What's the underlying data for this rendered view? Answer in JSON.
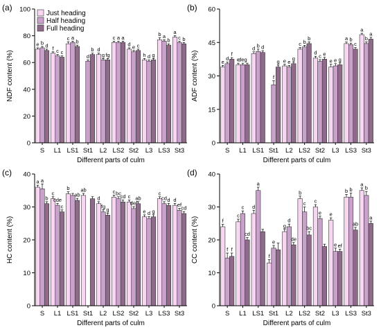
{
  "legend": [
    {
      "label": "Just heading",
      "color": "#f6d6f1"
    },
    {
      "label": "Half heading",
      "color": "#c9a2cc"
    },
    {
      "label": "Full heading",
      "color": "#8f6a8a"
    }
  ],
  "chart_data": [
    {
      "type": "bar",
      "panel_label": "(a)",
      "xlabel": "Different parts of culm",
      "ylabel": "NDF content (%)",
      "ylim": [
        0,
        100
      ],
      "yticks": [
        0,
        20,
        40,
        60,
        80,
        100
      ],
      "categories": [
        "S",
        "L1",
        "LS1",
        "St1",
        "L2",
        "LS2",
        "St2",
        "L3",
        "LS3",
        "St3"
      ],
      "legend_position": "top-left",
      "series": [
        {
          "name": "Just heading",
          "values": [
            70,
            67,
            74,
            null,
            66,
            75,
            70,
            62,
            77,
            79
          ],
          "errors": [
            1,
            1,
            1.5,
            null,
            1,
            1,
            1,
            1,
            1.5,
            1
          ],
          "letters": [
            "e",
            "f",
            "c",
            "",
            "d",
            "c",
            "d",
            "h",
            "b",
            "a"
          ]
        },
        {
          "name": "Half heading",
          "values": [
            71,
            65,
            75,
            61,
            62,
            75,
            68,
            61,
            76,
            75
          ],
          "errors": [
            1,
            1,
            1,
            1,
            1,
            1,
            1,
            1,
            1,
            1
          ],
          "letters": [
            "b",
            "c",
            "a",
            "d",
            "g",
            "a",
            "e",
            "d",
            "a",
            "c"
          ]
        },
        {
          "name": "Full heading",
          "values": [
            69,
            64,
            72,
            66,
            62,
            75,
            69,
            62,
            73,
            74
          ],
          "errors": [
            1,
            1,
            1,
            1,
            1,
            1,
            1,
            1,
            1,
            1
          ],
          "letters": [
            "d",
            "c",
            "b",
            "b",
            "fg",
            "a",
            "c",
            "g",
            "b",
            "b"
          ]
        }
      ]
    },
    {
      "type": "bar",
      "panel_label": "(b)",
      "xlabel": "Different parts of culm",
      "ylabel": "ADF content (%)",
      "ylim": [
        0,
        60
      ],
      "yticks": [
        0,
        15,
        30,
        45,
        60
      ],
      "categories": [
        "S",
        "L1",
        "LS1",
        "St1",
        "L2",
        "LS2",
        "St2",
        "L3",
        "LS3",
        "St3"
      ],
      "series": [
        {
          "name": "Just heading",
          "values": [
            34,
            35,
            40,
            null,
            34.5,
            42,
            38,
            34,
            44.5,
            48.5
          ],
          "errors": [
            0.7,
            0.7,
            0.8,
            null,
            0.7,
            0.7,
            0.8,
            1.2,
            0.7,
            0.6
          ],
          "letters": [
            "e",
            "e",
            "d",
            "",
            "e",
            "c",
            "d",
            "e",
            "a",
            "a"
          ]
        },
        {
          "name": "Half heading",
          "values": [
            35.5,
            35,
            41,
            26,
            34,
            43,
            36.5,
            34.5,
            44,
            44.5
          ],
          "errors": [
            0.7,
            0.7,
            1,
            1.8,
            0.7,
            0.7,
            0.8,
            1,
            0.7,
            0.8
          ],
          "letters": [
            "d",
            "deg",
            "b",
            "f",
            "e",
            "b",
            "c",
            "e",
            "b",
            "b"
          ]
        },
        {
          "name": "Full heading",
          "values": [
            37.5,
            35,
            40.5,
            34,
            35.5,
            44.5,
            37.5,
            35,
            42,
            46.5
          ],
          "errors": [
            0.7,
            0.7,
            0.8,
            0.8,
            0.7,
            0.8,
            0.8,
            0.8,
            0.7,
            0.8
          ],
          "letters": [
            "f",
            "",
            "d",
            "g",
            "g",
            "b",
            "e",
            "g",
            "c",
            "a"
          ]
        }
      ]
    },
    {
      "type": "bar",
      "panel_label": "(c)",
      "xlabel": "Different parts of culm",
      "ylabel": "HC content (%)",
      "ylim": [
        0,
        40
      ],
      "yticks": [
        0,
        10,
        20,
        30,
        40
      ],
      "categories": [
        "S",
        "L1",
        "LS1",
        "St1",
        "L2",
        "LS2",
        "St2",
        "L3",
        "LS3",
        "St3"
      ],
      "series": [
        {
          "name": "Just heading",
          "values": [
            36,
            32.5,
            34,
            33.5,
            31,
            33,
            31.5,
            27,
            32.5,
            30.5
          ],
          "errors": [
            0.6,
            0.6,
            0.6,
            0.6,
            0.6,
            0.6,
            0.6,
            0.6,
            0.6,
            0.6
          ],
          "letters": [
            "a",
            "c",
            "b",
            "ab",
            "d",
            "c",
            "c",
            "e",
            "c",
            "d"
          ]
        },
        {
          "name": "Half heading",
          "values": [
            35.5,
            30.5,
            33.5,
            null,
            28.5,
            32.5,
            29.5,
            26.5,
            31,
            29
          ],
          "errors": [
            1.5,
            0.6,
            0.6,
            null,
            0.6,
            0.6,
            0.6,
            0.6,
            0.6,
            0.6
          ],
          "letters": [
            "a",
            "cde",
            "",
            "",
            "fg",
            "bc",
            "def",
            "d",
            "cd",
            "ef"
          ]
        },
        {
          "name": "Full heading",
          "values": [
            31,
            28.5,
            32,
            32.5,
            27.5,
            31.5,
            31,
            27,
            30.5,
            28
          ],
          "errors": [
            0.6,
            0.6,
            0.6,
            0.6,
            0.6,
            0.6,
            0.6,
            0.6,
            0.6,
            0.6
          ],
          "letters": [
            "b",
            "c",
            "ab",
            "",
            "g",
            "cd",
            "ab",
            "g",
            "d",
            "cd"
          ]
        }
      ]
    },
    {
      "type": "bar",
      "panel_label": "(d)",
      "xlabel": "Different parts of culm",
      "ylabel": "CC content (%)",
      "ylim": [
        0,
        40
      ],
      "yticks": [
        0,
        10,
        20,
        30,
        40
      ],
      "categories": [
        "S",
        "L1",
        "LS1",
        "St1",
        "L2",
        "LS2",
        "St2",
        "L3",
        "LS3",
        "St3"
      ],
      "series": [
        {
          "name": "Just heading",
          "values": [
            24,
            25.5,
            28,
            13,
            22.5,
            32.5,
            30,
            26,
            33,
            35
          ],
          "errors": [
            0.7,
            0.8,
            1,
            1,
            0.7,
            0.8,
            0.7,
            0.7,
            0.8,
            0.8
          ],
          "letters": [
            "f",
            "c",
            "d",
            "f",
            "g",
            "b",
            "c",
            "e",
            "b",
            "a"
          ]
        },
        {
          "name": "Half heading",
          "values": [
            14.5,
            28,
            35,
            17.5,
            24,
            28.5,
            26.5,
            16.5,
            33,
            33.5
          ],
          "errors": [
            1.5,
            0.8,
            1,
            0.8,
            0.8,
            1.5,
            0.7,
            1,
            1.2,
            1.2
          ],
          "letters": [
            "f",
            "c",
            "a",
            "e",
            "d",
            "c",
            "e",
            "e",
            "b",
            "b"
          ]
        },
        {
          "name": "Full heading",
          "values": [
            15,
            20,
            22.5,
            17,
            18.5,
            21.5,
            18,
            16.5,
            23,
            25
          ],
          "errors": [
            1,
            0.7,
            0.7,
            2,
            0.7,
            1,
            0.7,
            0.7,
            0.8,
            0.7
          ],
          "letters": [
            "f",
            "cd",
            "",
            "",
            "de",
            "bc",
            "",
            "ef",
            "ab",
            "a"
          ]
        }
      ]
    }
  ]
}
